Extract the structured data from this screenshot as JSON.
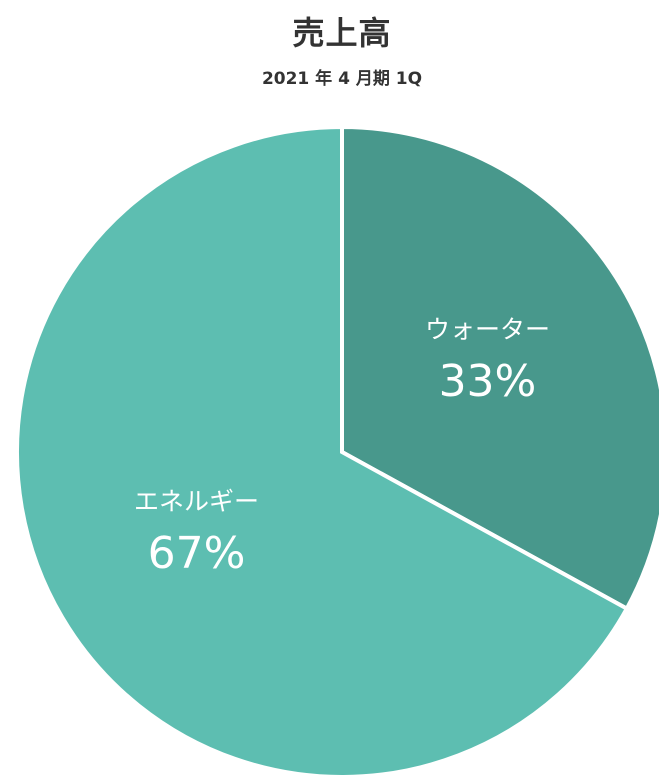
{
  "chart_data": {
    "type": "pie",
    "title": "売上高",
    "subtitle": "2021 年 4 月期 1Q",
    "slices": [
      {
        "name": "ウォーター",
        "value": 33,
        "label": "33%",
        "color": "#48988c"
      },
      {
        "name": "エネルギー",
        "value": 67,
        "label": "67%",
        "color": "#5dbeb1"
      }
    ],
    "start": "12 o'clock",
    "direction": "clockwise",
    "legend": "none"
  }
}
